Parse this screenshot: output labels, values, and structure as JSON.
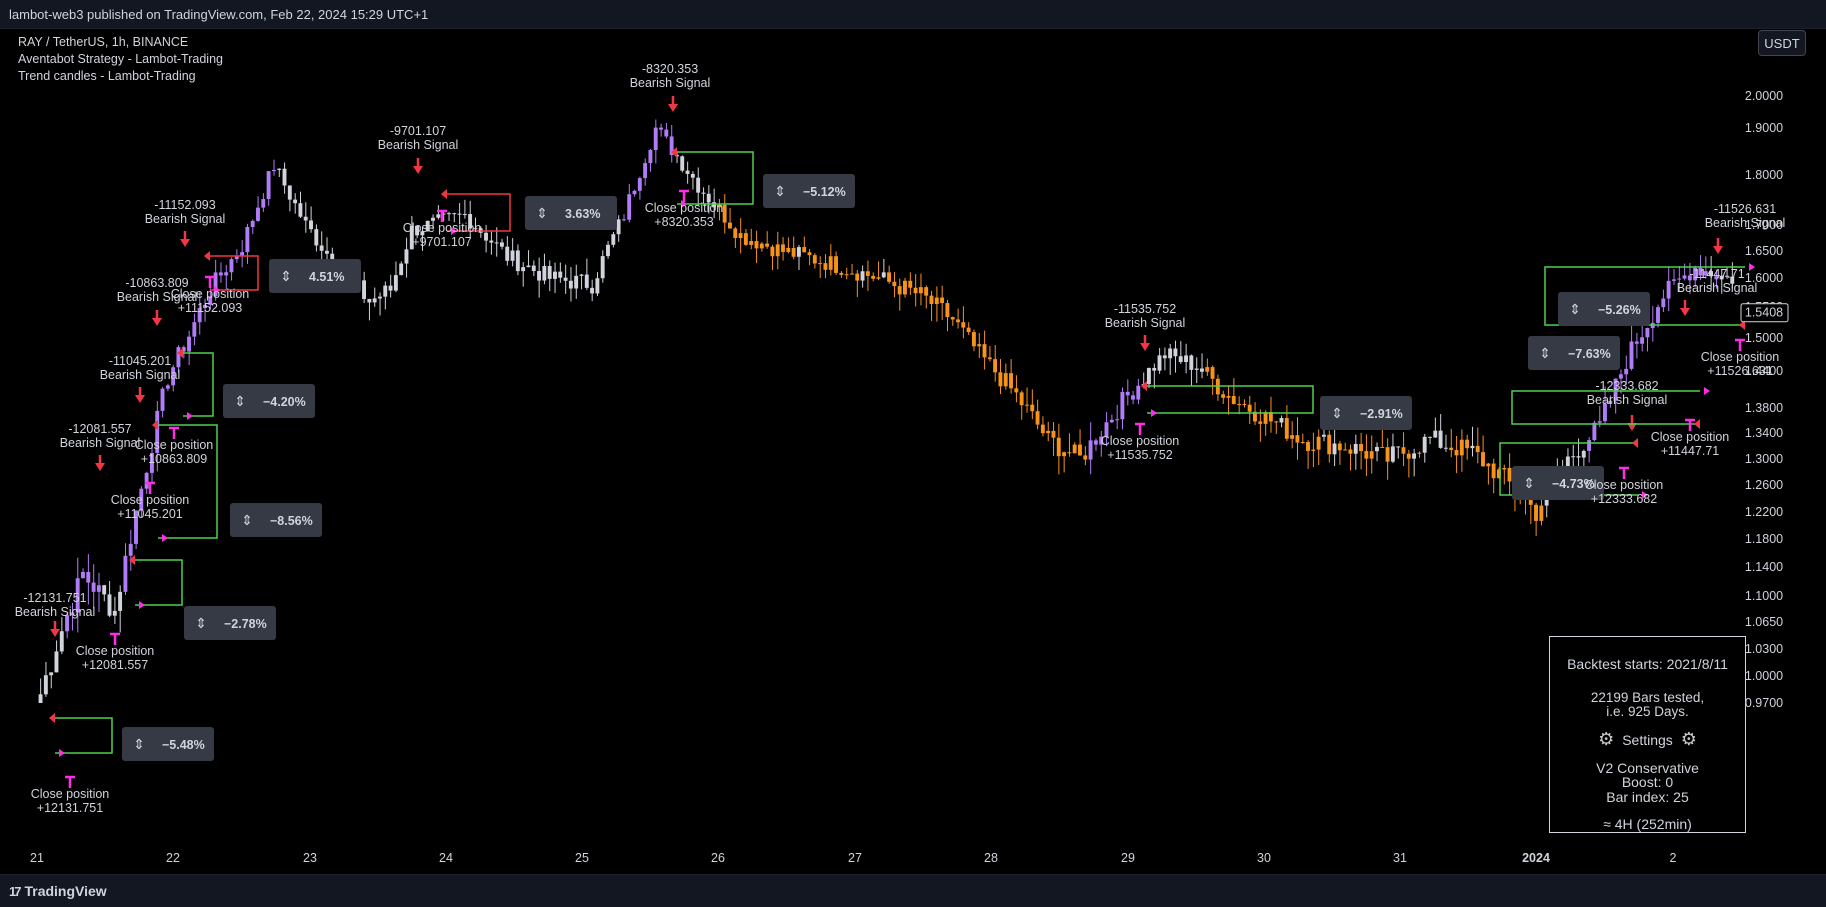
{
  "header": {
    "published": "lambot-web3 published on TradingView.com, Feb 22, 2024 15:29 UTC+1"
  },
  "legend": {
    "symbol": "RAY / TetherUS, 1h, BINANCE",
    "strategy": "Aventabot Strategy - Lambot-Trading",
    "indicator": "Trend candles - Lambot-Trading"
  },
  "currency_button": "USDT",
  "footer": {
    "brand": "TradingView"
  },
  "stats_panel": {
    "backtest": "Backtest starts: 2021/8/11",
    "bars": "22199 Bars tested,",
    "days": "i.e. 925 Days.",
    "settings": "Settings",
    "mode": "V2 Conservative",
    "boost": "Boost: 0",
    "bar_index": "Bar index: 25",
    "timeframe": "≈ 4H (252min)"
  },
  "colors": {
    "bullish_trend": "#b07cf7",
    "bearish_trend": "#f7931a",
    "neutral": "#d1d4dc",
    "signal": "#f23645",
    "close_marker": "#ff2ee6",
    "win": "#4cd34c",
    "loss": "#f23645",
    "badge": "#363a45"
  },
  "icons": {
    "signal": "arrow-down-icon",
    "close": "close-position-icon",
    "settings": "gear-icon",
    "measure": "measure-icon"
  },
  "chart_data": {
    "type": "candlestick",
    "x_ticks": [
      "21",
      "22",
      "23",
      "24",
      "25",
      "26",
      "27",
      "28",
      "29",
      "30",
      "31",
      "2024",
      "2"
    ],
    "y_ticks": [
      "2.0000",
      "1.9000",
      "1.8000",
      "1.7000",
      "1.6500",
      "1.6000",
      "1.5500",
      "1.5000",
      "1.4400",
      "1.3800",
      "1.3400",
      "1.3000",
      "1.2600",
      "1.2200",
      "1.1800",
      "1.1400",
      "1.1000",
      "1.0650",
      "1.0300",
      "1.0000",
      "0.9700"
    ],
    "last_price": "1.5408",
    "price_path": [
      [
        0,
        0.98
      ],
      [
        8,
        1.13
      ],
      [
        14,
        1.08
      ],
      [
        24,
        1.43
      ],
      [
        32,
        1.58
      ],
      [
        38,
        1.66
      ],
      [
        44,
        1.82
      ],
      [
        50,
        1.7
      ],
      [
        56,
        1.62
      ],
      [
        62,
        1.56
      ],
      [
        66,
        1.58
      ],
      [
        70,
        1.69
      ],
      [
        80,
        1.72
      ],
      [
        88,
        1.64
      ],
      [
        96,
        1.6
      ],
      [
        104,
        1.59
      ],
      [
        110,
        1.72
      ],
      [
        116,
        1.9
      ],
      [
        124,
        1.78
      ],
      [
        132,
        1.68
      ],
      [
        140,
        1.65
      ],
      [
        148,
        1.63
      ],
      [
        158,
        1.6
      ],
      [
        166,
        1.57
      ],
      [
        172,
        1.53
      ],
      [
        178,
        1.46
      ],
      [
        184,
        1.4
      ],
      [
        190,
        1.33
      ],
      [
        196,
        1.3
      ],
      [
        204,
        1.39
      ],
      [
        212,
        1.47
      ],
      [
        218,
        1.45
      ],
      [
        224,
        1.4
      ],
      [
        230,
        1.37
      ],
      [
        238,
        1.33
      ],
      [
        246,
        1.32
      ],
      [
        254,
        1.3
      ],
      [
        262,
        1.33
      ],
      [
        270,
        1.31
      ],
      [
        276,
        1.27
      ],
      [
        282,
        1.22
      ],
      [
        288,
        1.3
      ],
      [
        294,
        1.35
      ],
      [
        300,
        1.48
      ],
      [
        306,
        1.57
      ],
      [
        312,
        1.62
      ],
      [
        318,
        1.6
      ]
    ],
    "signals": [
      {
        "type": "Bearish Signal",
        "value": "-12131.751",
        "close": "Close position",
        "close_value": "+12131.751",
        "pct": "−5.48%"
      },
      {
        "type": "Bearish Signal",
        "value": "-12081.557",
        "close": "Close position",
        "close_value": "+12081.557",
        "pct": "−2.78%"
      },
      {
        "type": "Bearish Signal",
        "value": "-11045.201",
        "close": "Close position",
        "close_value": "+11045.201",
        "pct": "−8.56%"
      },
      {
        "type": "Bearish Signal",
        "value": "-10863.809",
        "close": "Close position",
        "close_value": "+10863.809",
        "pct": "−4.20%"
      },
      {
        "type": "Bearish Signal",
        "value": "-11152.093",
        "close": "Close position",
        "close_value": "+11152.093",
        "pct": "4.51%"
      },
      {
        "type": "Bearish Signal",
        "value": "-9701.107",
        "close": "Close position",
        "close_value": "+9701.107",
        "pct": "3.63%"
      },
      {
        "type": "Bearish Signal",
        "value": "-8320.353",
        "close": "Close position",
        "close_value": "+8320.353",
        "pct": "−5.12%"
      },
      {
        "type": "Bearish Signal",
        "value": "-11535.752",
        "close": "Close position",
        "close_value": "+11535.752",
        "pct": "−2.91%"
      },
      {
        "type": "Bearish Signal",
        "value": "-12333.682",
        "close": "Close position",
        "close_value": "+12333.682",
        "pct": "−4.73%"
      },
      {
        "type": "Bearish Signal",
        "value": "-11447.71",
        "close": "Close position",
        "close_value": "+11447.71",
        "pct": "−7.63%"
      },
      {
        "type": "Bearish Signal",
        "value": "-11526.631",
        "close": "Close position",
        "close_value": "+11526.631",
        "pct": "−5.26%"
      }
    ]
  }
}
